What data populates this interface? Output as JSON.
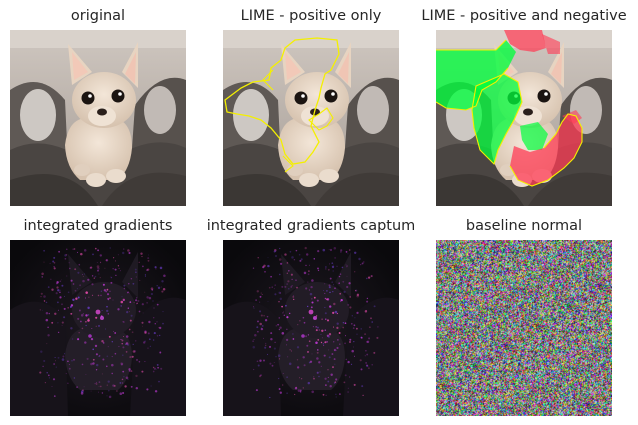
{
  "figure": {
    "panels": [
      {
        "id": "original",
        "title": "original",
        "kind": "photo"
      },
      {
        "id": "lime-positive",
        "title": "LIME - positive only",
        "kind": "lime-positive"
      },
      {
        "id": "lime-posneg",
        "title": "LIME - positive and negative",
        "kind": "lime-posneg"
      },
      {
        "id": "integrated-gradients",
        "title": "integrated gradients",
        "kind": "ig"
      },
      {
        "id": "integrated-gradients-captum",
        "title": "integrated gradients captum",
        "kind": "ig"
      },
      {
        "id": "baseline-normal",
        "title": "baseline normal",
        "kind": "noise"
      }
    ],
    "colors": {
      "background": "#ffffff",
      "title_text": "#262626",
      "boundary": "#f4f000",
      "positive_overlay": "#00ff3c",
      "negative_overlay": "#ff3c55"
    }
  }
}
